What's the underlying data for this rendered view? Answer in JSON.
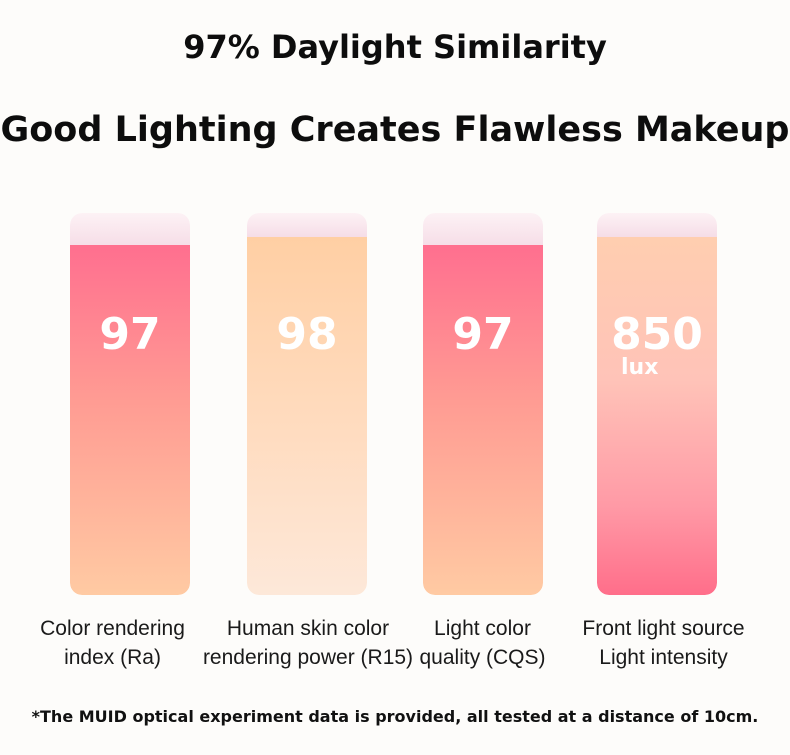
{
  "header": {
    "title": "97% Daylight Similarity",
    "subtitle": "Good Lighting Creates Flawless Makeup"
  },
  "metrics": [
    {
      "value": "97",
      "unit": "",
      "label_line1": "Color rendering",
      "label_line2": "index (Ra)"
    },
    {
      "value": "98",
      "unit": "",
      "label_line1": "Human skin color",
      "label_line2": "rendering power (R15)"
    },
    {
      "value": "97",
      "unit": "",
      "label_line1": "Light color",
      "label_line2": "quality (CQS)"
    },
    {
      "value": "850",
      "unit": "lux",
      "label_line1": "Front light source",
      "label_line2": "Light intensity"
    }
  ],
  "colors": {
    "coral_top": "#ff6f8f",
    "peach": "#ffcfa4",
    "cap_pink": "#f5dbe6",
    "text": "#111111"
  },
  "footnote": "*The MUID optical experiment data is provided, all tested at a distance of 10cm."
}
